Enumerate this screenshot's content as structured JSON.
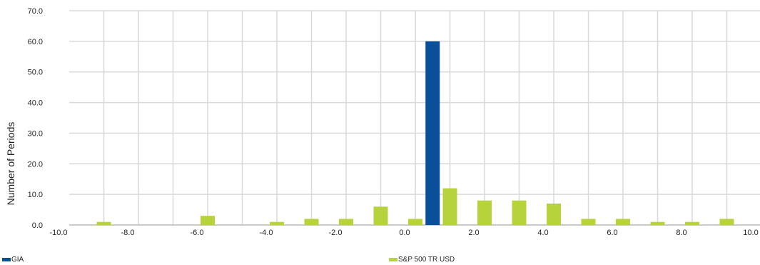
{
  "chart_data": {
    "type": "bar",
    "title": "",
    "xlabel": "",
    "ylabel": "Number of Periods",
    "xlim": [
      -10,
      10
    ],
    "ylim": [
      0,
      70
    ],
    "x_ticks": [
      "-10.0",
      "-8.0",
      "-6.0",
      "-4.0",
      "-2.0",
      "0.0",
      "2.0",
      "4.0",
      "6.0",
      "8.0",
      "10.0"
    ],
    "y_ticks": [
      "0.0",
      "10.0",
      "20.0",
      "30.0",
      "40.0",
      "50.0",
      "60.0",
      "70.0"
    ],
    "grid": true,
    "legend_position": "bottom",
    "series": [
      {
        "name": "GIA",
        "color": "#0a4f9a",
        "points": [
          {
            "x": 0.5,
            "y": 60
          }
        ]
      },
      {
        "name": "S&P 500 TR USD",
        "color": "#b6d33b",
        "points": [
          {
            "x": -9.0,
            "y": 1
          },
          {
            "x": -6.0,
            "y": 3
          },
          {
            "x": -4.0,
            "y": 1
          },
          {
            "x": -3.0,
            "y": 2
          },
          {
            "x": -2.0,
            "y": 2
          },
          {
            "x": -1.0,
            "y": 6
          },
          {
            "x": 0.0,
            "y": 2
          },
          {
            "x": 1.0,
            "y": 12
          },
          {
            "x": 2.0,
            "y": 8
          },
          {
            "x": 3.0,
            "y": 8
          },
          {
            "x": 4.0,
            "y": 7
          },
          {
            "x": 5.0,
            "y": 2
          },
          {
            "x": 6.0,
            "y": 2
          },
          {
            "x": 7.0,
            "y": 1
          },
          {
            "x": 8.0,
            "y": 1
          },
          {
            "x": 9.0,
            "y": 2
          }
        ]
      }
    ]
  }
}
